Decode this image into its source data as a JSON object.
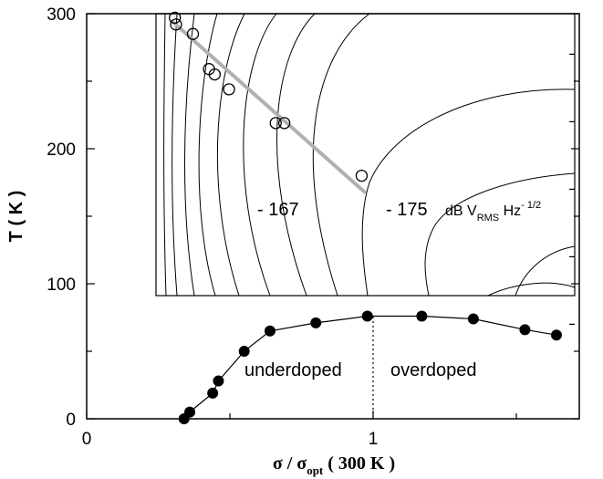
{
  "chart_data": {
    "type": "scatter",
    "xlabel_main": "σ / σ",
    "xlabel_sub": "opt",
    "xlabel_tail": " ( 300 K )",
    "ylabel": "T ( K )",
    "xlim": [
      0,
      1.6
    ],
    "ylim": [
      0,
      300
    ],
    "x_ticks": [
      "0",
      "1"
    ],
    "y_ticks": [
      "0",
      "100",
      "200",
      "300"
    ],
    "annotations": {
      "underdoped": "underdoped",
      "overdoped": "overdoped",
      "contour_a": "- 167",
      "contour_b": "- 175",
      "unit_pre": "dB V",
      "unit_sub": "RMS",
      "unit_mid": " Hz",
      "unit_sup": "- 1/2"
    },
    "series": [
      {
        "marker": "filled-circle",
        "line": true,
        "x": [
          0.34,
          0.36,
          0.44,
          0.46,
          0.55,
          0.64,
          0.8,
          0.98,
          1.17,
          1.35,
          1.53,
          1.64
        ],
        "y": [
          0,
          5,
          19,
          28,
          50,
          65,
          71,
          76,
          76,
          74,
          66,
          62
        ]
      },
      {
        "marker": "open-circle",
        "line": false,
        "x": [
          0.308,
          0.312,
          0.371,
          0.427,
          0.447,
          0.497,
          0.66,
          0.69,
          0.96
        ],
        "y": [
          297,
          292,
          285,
          259,
          255,
          244,
          219,
          219,
          180
        ]
      },
      {
        "marker": "none",
        "line": true,
        "color": "#b0b0b0",
        "x": [
          0.3,
          0.97
        ],
        "y": [
          294,
          168
        ]
      }
    ],
    "reference_line": {
      "x": 1.0,
      "y": [
        0,
        76
      ],
      "style": "dotted"
    }
  }
}
